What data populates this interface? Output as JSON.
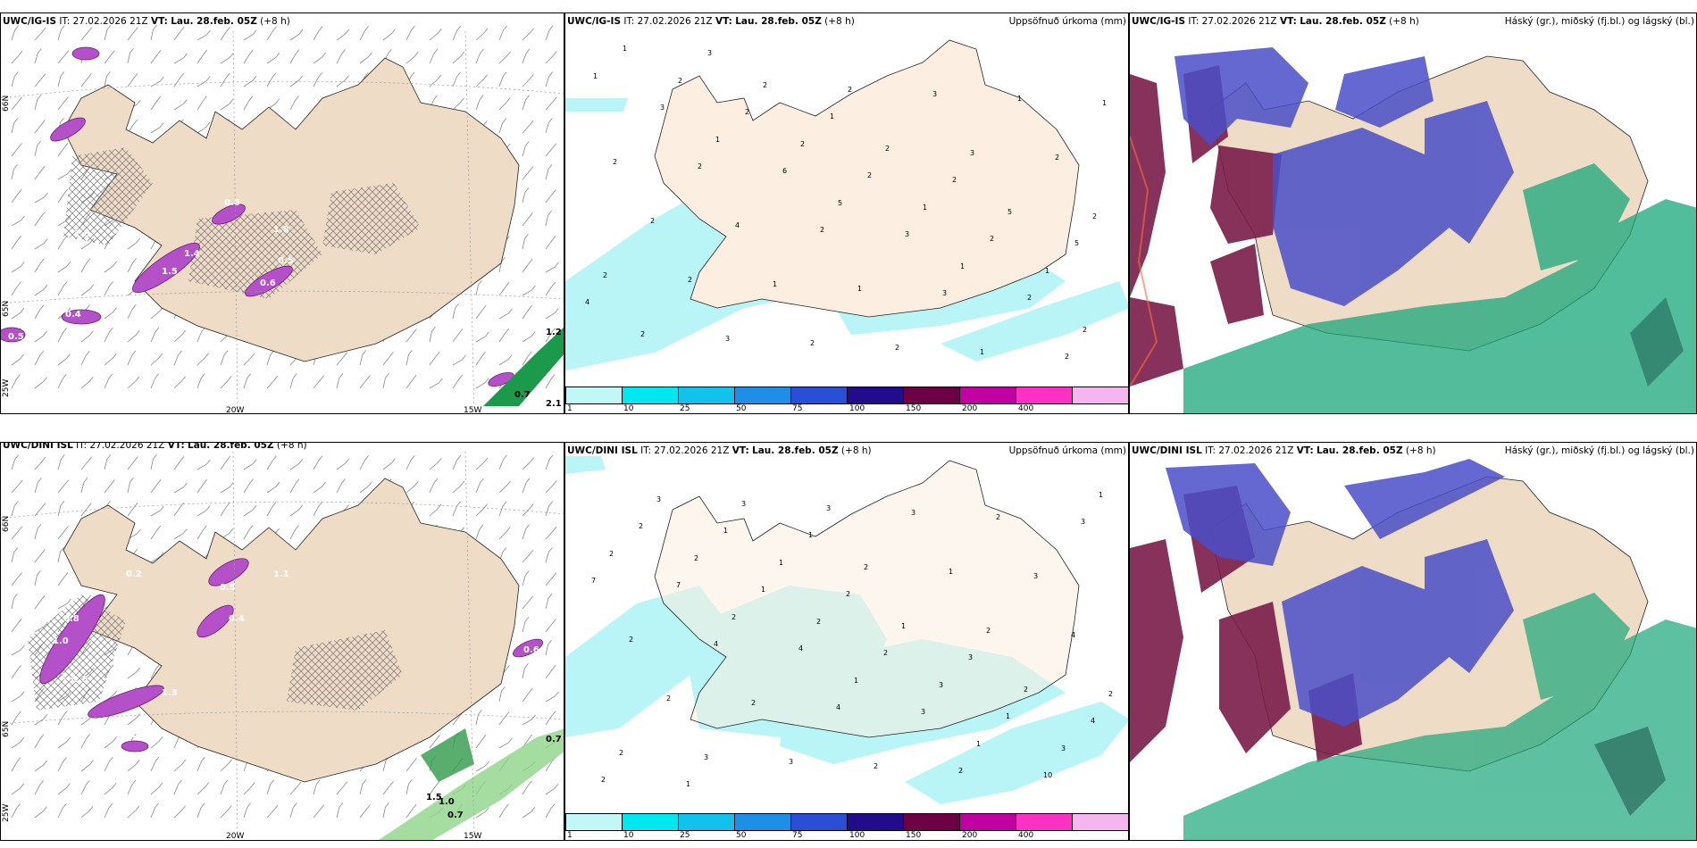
{
  "colors": {
    "land": "#efdcc7",
    "land_light": "#fcefe2",
    "precip_light": "#b9f4f6",
    "purple": "#b450c8",
    "cloud_high": "#7a1c4a",
    "cloud_mid": "#4a4ec8",
    "cloud_low": "#19a77a"
  },
  "colorbar": {
    "colors": [
      "#c2f7f7",
      "#00e8ef",
      "#13c2ec",
      "#1d8fe6",
      "#2b4ed6",
      "#220c8c",
      "#6d0045",
      "#c000a0",
      "#ff30c4",
      "#f5b6f0"
    ],
    "labels": [
      "1",
      "10",
      "25",
      "50",
      "75",
      "100",
      "150",
      "200",
      "400"
    ]
  },
  "rows": [
    {
      "model": "UWC/IG-IS",
      "panels": [
        {
          "model": "UWC/IG-IS",
          "it_label": "IT:",
          "it": "27.02.2026 21Z",
          "vt_label": "VT:",
          "vt": "Lau. 28.feb. 05Z",
          "lead": "(+8 h)",
          "right": ""
        },
        {
          "model": "UWC/IG-IS",
          "it_label": "IT:",
          "it": "27.02.2026 21Z",
          "vt_label": "VT:",
          "vt": "Lau. 28.feb. 05Z",
          "lead": "(+8 h)",
          "right": "Uppsöfnuð úrkoma (mm)"
        },
        {
          "model": "UWC/IG-IS",
          "it_label": "IT:",
          "it": "27.02.2026 21Z",
          "vt_label": "VT:",
          "vt": "Lau. 28.feb. 05Z",
          "lead": "(+8 h)",
          "right": "Háský (gr.), miðský (fj.bl.) og lágský (bl.)"
        }
      ],
      "axis_labels": {
        "lat66": "66N",
        "lat65": "65N",
        "lon20": "20W",
        "lon15": "15W",
        "lon25": "25W"
      },
      "wind_values": [
        "0.6",
        "1.8",
        "1.4",
        "1.5",
        "0.4",
        "0.5",
        "0.6",
        "0.4",
        "0.5",
        "1.0",
        "1.0",
        "0.7",
        "1.2",
        "2.1"
      ],
      "precip_values": [
        "1",
        "1",
        "5",
        "1",
        "2",
        "2",
        "2",
        "1",
        "1",
        "2",
        "2",
        "2",
        "5",
        "2",
        "3",
        "2",
        "3",
        "2",
        "2",
        "2",
        "3",
        "2",
        "2",
        "1",
        "2",
        "1",
        "2",
        "4",
        "1",
        "1",
        "1",
        "2",
        "2",
        "3",
        "2",
        "3",
        "6",
        "3",
        "2",
        "1",
        "2",
        "2",
        "2",
        "4",
        "3",
        "1",
        "2",
        "5"
      ]
    },
    {
      "model": "UWC/DINI ISL",
      "panels": [
        {
          "model": "UWC/DINI ISL",
          "it_label": "IT:",
          "it": "27.02.2026 21Z",
          "vt_label": "VT:",
          "vt": "Lau. 28.feb. 05Z",
          "lead": "(+8 h)",
          "right": ""
        },
        {
          "model": "UWC/DINI ISL",
          "it_label": "IT:",
          "it": "27.02.2026 21Z",
          "vt_label": "VT:",
          "vt": "Lau. 28.feb. 05Z",
          "lead": "(+8 h)",
          "right": "Uppsöfnuð úrkoma (mm)"
        },
        {
          "model": "UWC/DINI ISL",
          "it_label": "IT:",
          "it": "27.02.2026 21Z",
          "vt_label": "VT:",
          "vt": "Lau. 28.feb. 05Z",
          "lead": "(+8 h)",
          "right": "Háský (gr.), miðský (fj.bl.) og lágský (bl.)"
        }
      ],
      "axis_labels": {
        "lat66": "66N",
        "lat65": "65N",
        "lon20": "20W",
        "lon15": "15W",
        "lon25": "25W"
      },
      "wind_values": [
        "0.2",
        "0.8",
        "1.0",
        "1.3",
        "1.5",
        "0.5",
        "0.4",
        "0.5",
        "1.3",
        "1.1",
        "0.6",
        "0.7",
        "0.7",
        "1.0",
        "1.5"
      ],
      "precip_values": [
        "2",
        "2",
        "1",
        "1",
        "1",
        "2",
        "2",
        "3",
        "3",
        "3",
        "1",
        "1",
        "2",
        "2",
        "3",
        "2",
        "2",
        "2",
        "3",
        "3",
        "1",
        "4",
        "2",
        "3",
        "3",
        "3",
        "2",
        "2",
        "2",
        "2",
        "7",
        "4",
        "4",
        "2",
        "3",
        "7",
        "4",
        "3",
        "10",
        "2",
        "1",
        "2",
        "1",
        "2",
        "1",
        "2",
        "3",
        "4",
        "1",
        "1"
      ]
    }
  ]
}
